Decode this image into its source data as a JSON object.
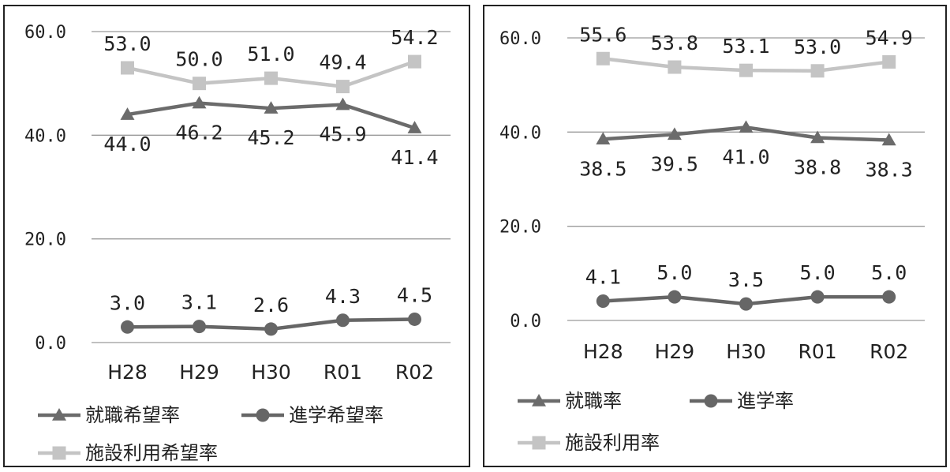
{
  "chart_data": [
    {
      "type": "line",
      "categories": [
        "H28",
        "H29",
        "H30",
        "R01",
        "R02"
      ],
      "ylim": [
        0,
        60
      ],
      "yticks": [
        "0.0",
        "20.0",
        "40.0",
        "60.0"
      ],
      "grid": true,
      "legend_position": "bottom",
      "series": [
        {
          "name": "就職希望率",
          "values": [
            44.0,
            46.2,
            45.2,
            45.9,
            41.4
          ],
          "labels": [
            "44.0",
            "46.2",
            "45.2",
            "45.9",
            "41.4"
          ],
          "label_pos": "below",
          "color": "#6b6b6b",
          "marker": "triangle"
        },
        {
          "name": "進学希望率",
          "values": [
            3.0,
            3.1,
            2.6,
            4.3,
            4.5
          ],
          "labels": [
            "3.0",
            "3.1",
            "2.6",
            "4.3",
            "4.5"
          ],
          "label_pos": "above",
          "color": "#666666",
          "marker": "circle"
        },
        {
          "name": "施設利用希望率",
          "values": [
            53.0,
            50.0,
            51.0,
            49.4,
            54.2
          ],
          "labels": [
            "53.0",
            "50.0",
            "51.0",
            "49.4",
            "54.2"
          ],
          "label_pos": "above",
          "color": "#c4c4c4",
          "marker": "square"
        }
      ]
    },
    {
      "type": "line",
      "categories": [
        "H28",
        "H29",
        "H30",
        "R01",
        "R02"
      ],
      "ylim": [
        0,
        60
      ],
      "yticks": [
        "0.0",
        "20.0",
        "40.0",
        "60.0"
      ],
      "grid": true,
      "legend_position": "bottom",
      "series": [
        {
          "name": "就職率",
          "values": [
            38.5,
            39.5,
            41.0,
            38.8,
            38.3
          ],
          "labels": [
            "38.5",
            "39.5",
            "41.0",
            "38.8",
            "38.3"
          ],
          "label_pos": "below",
          "color": "#6b6b6b",
          "marker": "triangle"
        },
        {
          "name": "進学率",
          "values": [
            4.1,
            5.0,
            3.5,
            5.0,
            5.0
          ],
          "labels": [
            "4.1",
            "5.0",
            "3.5",
            "5.0",
            "5.0"
          ],
          "label_pos": "above",
          "color": "#666666",
          "marker": "circle"
        },
        {
          "name": "施設利用率",
          "values": [
            55.6,
            53.8,
            53.1,
            53.0,
            54.9
          ],
          "labels": [
            "55.6",
            "53.8",
            "53.1",
            "53.0",
            "54.9"
          ],
          "label_pos": "above",
          "color": "#c4c4c4",
          "marker": "square"
        }
      ]
    }
  ]
}
